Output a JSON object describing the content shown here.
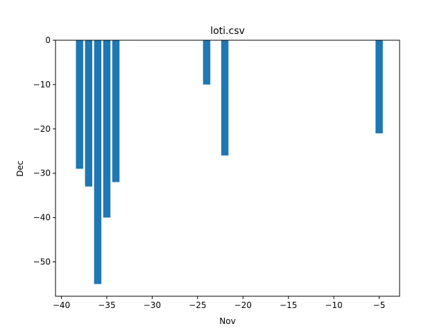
{
  "chart_data": {
    "type": "bar",
    "title": "loti.csv",
    "xlabel": "Nov",
    "ylabel": "Dec",
    "x": [
      -38,
      -37,
      -36,
      -35,
      -34,
      -24,
      -22,
      -5
    ],
    "values": [
      -29,
      -33,
      -55,
      -40,
      -32,
      -10,
      -26,
      -21
    ],
    "xlim": [
      -40.65,
      -2.75
    ],
    "ylim": [
      -57.75,
      0
    ],
    "xticks": [
      -40,
      -35,
      -30,
      -25,
      -20,
      -15,
      -10,
      -5
    ],
    "xtick_labels": [
      "−40",
      "−35",
      "−30",
      "−25",
      "−20",
      "−15",
      "−10",
      "−5"
    ],
    "yticks": [
      0,
      -10,
      -20,
      -30,
      -40,
      -50
    ],
    "ytick_labels": [
      "0",
      "−10",
      "−20",
      "−30",
      "−40",
      "−50"
    ],
    "grid": false,
    "bar_color": "#1f77b4"
  }
}
